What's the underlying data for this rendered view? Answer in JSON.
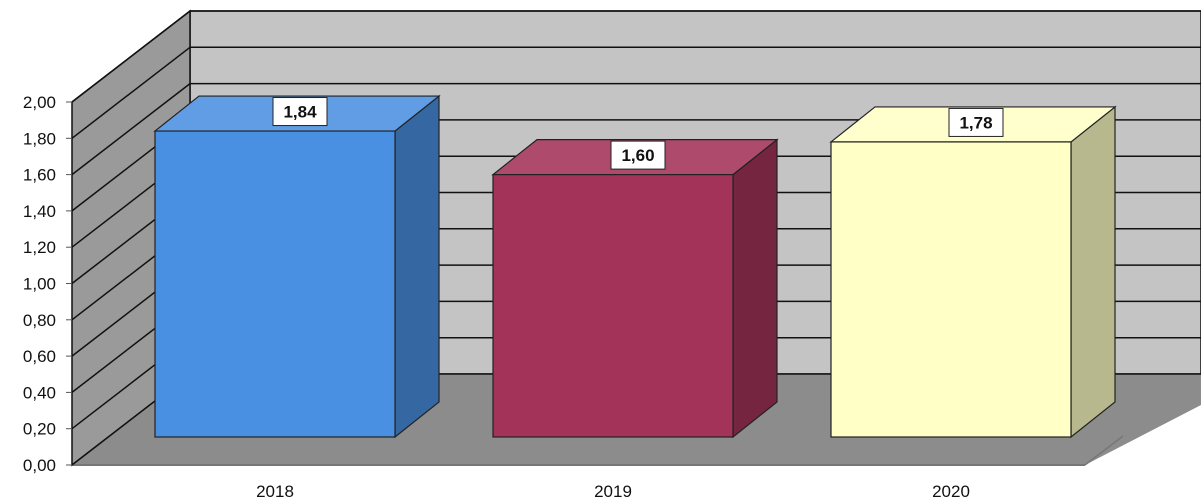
{
  "chart_data": {
    "type": "bar",
    "style": "3d",
    "categories": [
      "2018",
      "2019",
      "2020"
    ],
    "values": [
      1.84,
      1.6,
      1.78
    ],
    "data_labels": [
      "1,84",
      "1,60",
      "1,78"
    ],
    "bar_colors": [
      "#4a90e2",
      "#a33358",
      "#ffffc6"
    ],
    "ylim": [
      0,
      2
    ],
    "yticks": [
      "0,00",
      "0,20",
      "0,40",
      "0,60",
      "0,80",
      "1,00",
      "1,20",
      "1,40",
      "1,60",
      "1,80",
      "2,00"
    ],
    "grid": true,
    "legend": "none",
    "title": "",
    "xlabel": "",
    "ylabel": ""
  }
}
